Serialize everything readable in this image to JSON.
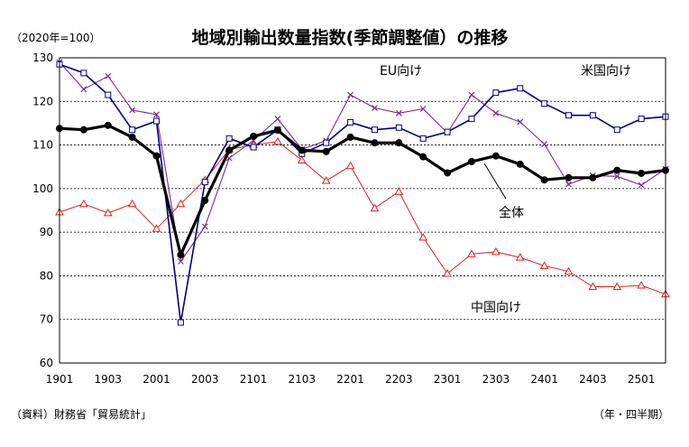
{
  "chart_data": {
    "type": "line",
    "title": "地域別輸出数量指数(季節調整値）の推移",
    "units_note": "（2020年=100）",
    "source": "（資料）財務省「貿易統計」",
    "xlabel": "（年・四半期）",
    "ylabel": "",
    "ylim": [
      60,
      130
    ],
    "yticks": [
      60,
      70,
      80,
      90,
      100,
      110,
      120,
      130
    ],
    "xtick_labels": [
      "1901",
      "1903",
      "2001",
      "2003",
      "2101",
      "2103",
      "2201",
      "2203",
      "2301",
      "2303",
      "2401",
      "2403",
      "2501"
    ],
    "categories": [
      "1901",
      "1902",
      "1903",
      "1904",
      "2001",
      "2002",
      "2003",
      "2004",
      "2101",
      "2102",
      "2103",
      "2104",
      "2201",
      "2202",
      "2203",
      "2204",
      "2301",
      "2302",
      "2303",
      "2304",
      "2401",
      "2402",
      "2403",
      "2404",
      "2501",
      "2502"
    ],
    "grid": true,
    "legend": "inline labels",
    "series": [
      {
        "name": "米国向け",
        "color": "#000080",
        "marker": "square",
        "values": [
          128.5,
          126.5,
          121.5,
          113.5,
          115.5,
          69.3,
          101.5,
          111.5,
          109.5,
          113.5,
          108.0,
          110.5,
          115.2,
          113.5,
          114.0,
          111.5,
          113.0,
          116.0,
          122.0,
          123.0,
          119.5,
          116.8,
          116.8,
          113.5,
          116.0,
          116.5
        ]
      },
      {
        "name": "EU向け",
        "color": "#7a2a9a",
        "marker": "x",
        "values": [
          129.0,
          122.8,
          125.8,
          118.0,
          117.0,
          83.3,
          91.3,
          107.0,
          111.0,
          116.0,
          109.0,
          111.0,
          121.5,
          118.5,
          117.3,
          118.3,
          112.8,
          121.5,
          117.3,
          115.3,
          110.2,
          101.0,
          103.0,
          102.8,
          100.8,
          104.5
        ]
      },
      {
        "name": "全体",
        "color": "#000000",
        "marker": "circle",
        "values": [
          113.8,
          113.5,
          114.5,
          111.8,
          107.5,
          84.8,
          97.3,
          108.8,
          112.0,
          113.4,
          108.8,
          108.5,
          111.8,
          110.5,
          110.5,
          107.3,
          103.6,
          106.2,
          107.5,
          105.6,
          102.0,
          102.5,
          102.5,
          104.2,
          103.5,
          104.2
        ]
      },
      {
        "name": "中国向け",
        "color": "#e02020",
        "marker": "triangle",
        "values": [
          94.6,
          96.5,
          94.4,
          96.5,
          90.8,
          96.5,
          102.0,
          109.0,
          110.0,
          110.8,
          106.5,
          101.8,
          105.2,
          95.5,
          99.3,
          88.8,
          80.5,
          85.0,
          85.5,
          84.2,
          82.3,
          81.0,
          77.5,
          77.5,
          77.8,
          75.8
        ]
      }
    ],
    "labels": [
      "EU向け",
      "米国向け",
      "全体",
      "中国向け"
    ]
  }
}
